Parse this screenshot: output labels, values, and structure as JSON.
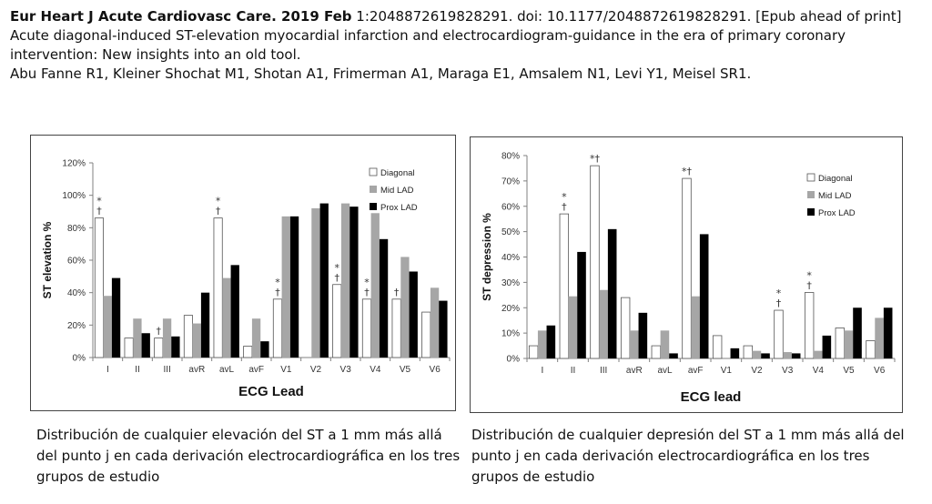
{
  "header": {
    "journal": "Eur Heart J Acute Cardiovasc Care. 2019 Feb",
    "citation_rest": " 1:2048872619828291. doi: 10.1177/2048872619828291. [Epub ahead of print]",
    "title_line1": "Acute diagonal-induced ST-elevation myocardial infarction and electrocardiogram-guidance in the era of primary coronary",
    "title_line2": "intervention: New insights into an old tool.",
    "authors": "Abu Fanne R1, Kleiner Shochat M1, Shotan A1, Frimerman A1, Maraga E1, Amsalem N1, Levi Y1, Meisel SR1."
  },
  "captions": {
    "left": "Distribución de cualquier elevación del ST a 1 mm más allá del punto j   en cada derivación electrocardiográfica en los tres grupos de estudio",
    "right": "Distribución de cualquier  depresión del ST a 1 mm más allá del punto j en cada derivación electrocardiográfica en los tres grupos de estudio"
  },
  "colors": {
    "diagonal": "#ffffff",
    "mid_lad": "#a6a6a6",
    "prox_lad": "#000000",
    "axis": "#808080"
  },
  "chart_data": [
    {
      "type": "bar",
      "xlabel": "ECG Lead",
      "ylabel": "ST elevation %",
      "ylim": [
        0,
        120
      ],
      "yticks": [
        "0%",
        "20%",
        "40%",
        "60%",
        "80%",
        "100%",
        "120%"
      ],
      "categories": [
        "I",
        "II",
        "III",
        "avR",
        "avL",
        "avF",
        "V1",
        "V2",
        "V3",
        "V4",
        "V5",
        "V6"
      ],
      "series": [
        {
          "name": "Diagonal",
          "values": [
            86,
            12,
            12,
            26,
            86,
            7,
            36,
            0,
            45,
            36,
            36,
            28
          ]
        },
        {
          "name": "Mid LAD",
          "values": [
            38,
            24,
            24,
            21,
            49,
            24,
            87,
            92,
            95,
            89,
            62,
            43
          ]
        },
        {
          "name": "Prox LAD",
          "values": [
            49,
            15,
            13,
            40,
            57,
            10,
            87,
            95,
            93,
            73,
            53,
            35
          ]
        }
      ],
      "annotations": [
        {
          "category": "I",
          "text": "*"
        },
        {
          "category": "I",
          "text": "†"
        },
        {
          "category": "III",
          "text": "†"
        },
        {
          "category": "avL",
          "text": "*"
        },
        {
          "category": "avL",
          "text": "†"
        },
        {
          "category": "V1",
          "text": "*"
        },
        {
          "category": "V1",
          "text": "†"
        },
        {
          "category": "V3",
          "text": "*"
        },
        {
          "category": "V3",
          "text": "†"
        },
        {
          "category": "V4",
          "text": "*"
        },
        {
          "category": "V4",
          "text": "†"
        },
        {
          "category": "V5",
          "text": "†"
        }
      ],
      "legend": "top-right",
      "grid": false
    },
    {
      "type": "bar",
      "xlabel": "ECG lead",
      "ylabel": "ST depression %",
      "ylim": [
        0,
        80
      ],
      "yticks": [
        "0%",
        "10%",
        "20%",
        "30%",
        "40%",
        "50%",
        "60%",
        "70%",
        "80%"
      ],
      "categories": [
        "I",
        "II",
        "III",
        "avR",
        "avL",
        "avF",
        "V1",
        "V2",
        "V3",
        "V4",
        "V5",
        "V6"
      ],
      "series": [
        {
          "name": "Diagonal",
          "values": [
            5,
            57,
            76,
            24,
            5,
            71,
            9,
            5,
            19,
            26,
            12,
            7
          ]
        },
        {
          "name": "Mid LAD",
          "values": [
            11,
            24.5,
            27,
            11,
            11,
            24.5,
            0,
            3,
            2.5,
            3,
            11,
            16
          ]
        },
        {
          "name": "Prox LAD",
          "values": [
            13,
            42,
            51,
            18,
            2,
            49,
            4,
            2,
            2,
            9,
            20,
            20
          ]
        }
      ],
      "annotations": [
        {
          "category": "II",
          "text": "*"
        },
        {
          "category": "II",
          "text": "†"
        },
        {
          "category": "III",
          "text": "*†"
        },
        {
          "category": "avF",
          "text": "*†"
        },
        {
          "category": "V3",
          "text": "*"
        },
        {
          "category": "V3",
          "text": "†"
        },
        {
          "category": "V4",
          "text": "*"
        },
        {
          "category": "V4",
          "text": "†"
        }
      ],
      "legend": "top-right",
      "grid": false
    }
  ]
}
